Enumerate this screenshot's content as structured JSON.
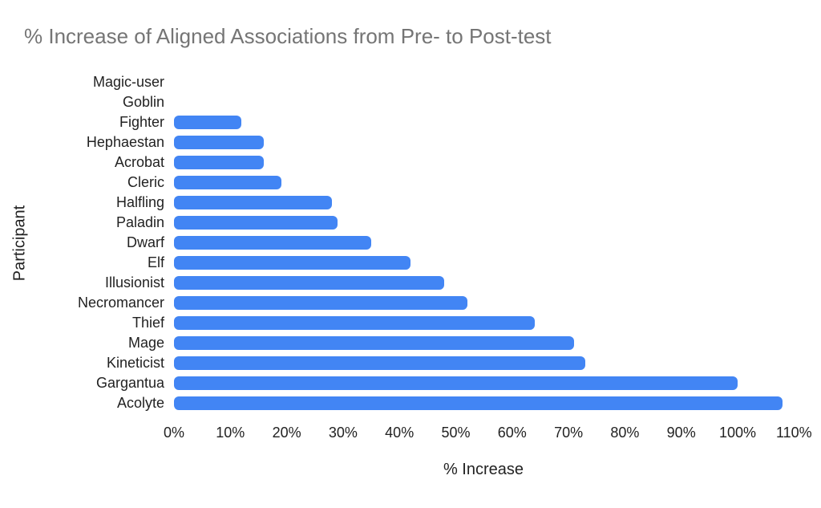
{
  "chart_data": {
    "type": "bar",
    "orientation": "horizontal",
    "title": "% Increase of Aligned Associations from Pre- to Post-test",
    "xlabel": "% Increase",
    "ylabel": "Participant",
    "categories": [
      "Magic-user",
      "Goblin",
      "Fighter",
      "Hephaestan",
      "Acrobat",
      "Cleric",
      "Halfling",
      "Paladin",
      "Dwarf",
      "Elf",
      "Illusionist",
      "Necromancer",
      "Thief",
      "Mage",
      "Kineticist",
      "Gargantua",
      "Acolyte"
    ],
    "values": [
      0,
      0,
      12,
      16,
      16,
      19,
      28,
      29,
      35,
      42,
      48,
      52,
      64,
      71,
      73,
      100,
      108
    ],
    "xlim": [
      0,
      110
    ],
    "x_tick_labels": [
      "0%",
      "10%",
      "20%",
      "30%",
      "40%",
      "50%",
      "60%",
      "70%",
      "80%",
      "90%",
      "100%",
      "110%"
    ],
    "grid": false,
    "legend": false,
    "colors": {
      "bar": "#4285F4",
      "title": "#757575",
      "axis_text": "#222222",
      "background": "#ffffff"
    }
  }
}
